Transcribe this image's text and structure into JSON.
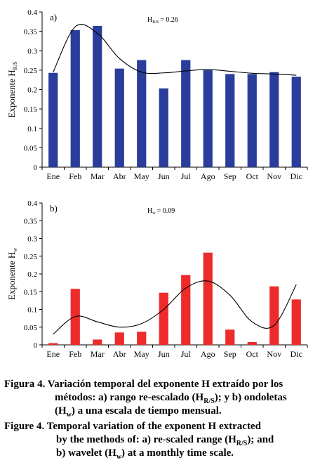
{
  "chart_data": [
    {
      "type": "bar",
      "panel_label": "a)",
      "annotation": "H",
      "annotation_sub": "R/S",
      "annotation_value": "= 0.26",
      "ylabel": "Exponente H",
      "ylabel_sub": "R/S",
      "ylim": [
        0,
        0.4
      ],
      "yticks": [
        "0",
        "0.05",
        "0.1",
        "0.15",
        "0.2",
        "0.25",
        "0.3",
        "0.35",
        "0.4"
      ],
      "categories": [
        "Ene",
        "Feb",
        "Mar",
        "Abr",
        "May",
        "Jun",
        "Jul",
        "Ago",
        "Sep",
        "Oct",
        "Nov",
        "Dic"
      ],
      "values": [
        0.243,
        0.353,
        0.364,
        0.254,
        0.276,
        0.203,
        0.276,
        0.25,
        0.24,
        0.24,
        0.245,
        0.233
      ],
      "bar_color": "#2b3d9a",
      "trend": [
        0.245,
        0.362,
        0.345,
        0.28,
        0.245,
        0.243,
        0.248,
        0.252,
        0.247,
        0.242,
        0.24,
        0.237
      ]
    },
    {
      "type": "bar",
      "panel_label": "b)",
      "annotation": "H",
      "annotation_sub": "w",
      "annotation_value": "= 0.09",
      "ylabel": "Exponente H",
      "ylabel_sub": "w",
      "ylim": [
        0,
        0.4
      ],
      "yticks": [
        "0",
        "0.05",
        "0.1",
        "0.15",
        "0.2",
        "0.25",
        "0.3",
        "0.35",
        "0.4"
      ],
      "categories": [
        "Ene",
        "Feb",
        "Mar",
        "Abr",
        "May",
        "Jun",
        "Jul",
        "Ago",
        "Sep",
        "Oct",
        "Nov",
        "Dic"
      ],
      "values": [
        0.005,
        0.158,
        0.015,
        0.035,
        0.037,
        0.147,
        0.197,
        0.26,
        0.043,
        0.008,
        0.165,
        0.128
      ],
      "bar_color": "#ee2b2b",
      "trend": [
        0.03,
        0.08,
        0.065,
        0.05,
        0.06,
        0.1,
        0.16,
        0.18,
        0.14,
        0.065,
        0.055,
        0.17
      ]
    }
  ],
  "caption": {
    "es_lines": [
      [
        "Figura 4. Variación temporal del exponente H extraído por los"
      ],
      [
        "métodos: a) rango re-escalado (H",
        {
          "sub": "R/S"
        },
        "); y b) ondoletas"
      ],
      [
        "(H",
        {
          "sub": "w"
        },
        ") a una escala de tiempo mensual."
      ]
    ],
    "en_lines": [
      [
        "Figure 4. Temporal variation of the exponent H extracted"
      ],
      [
        "by the methods of: a) re-scaled range (H",
        {
          "sub": "R/S"
        },
        "); and"
      ],
      [
        "b) wavelet (H",
        {
          "sub": "w"
        },
        ") at a monthly time scale."
      ]
    ]
  }
}
